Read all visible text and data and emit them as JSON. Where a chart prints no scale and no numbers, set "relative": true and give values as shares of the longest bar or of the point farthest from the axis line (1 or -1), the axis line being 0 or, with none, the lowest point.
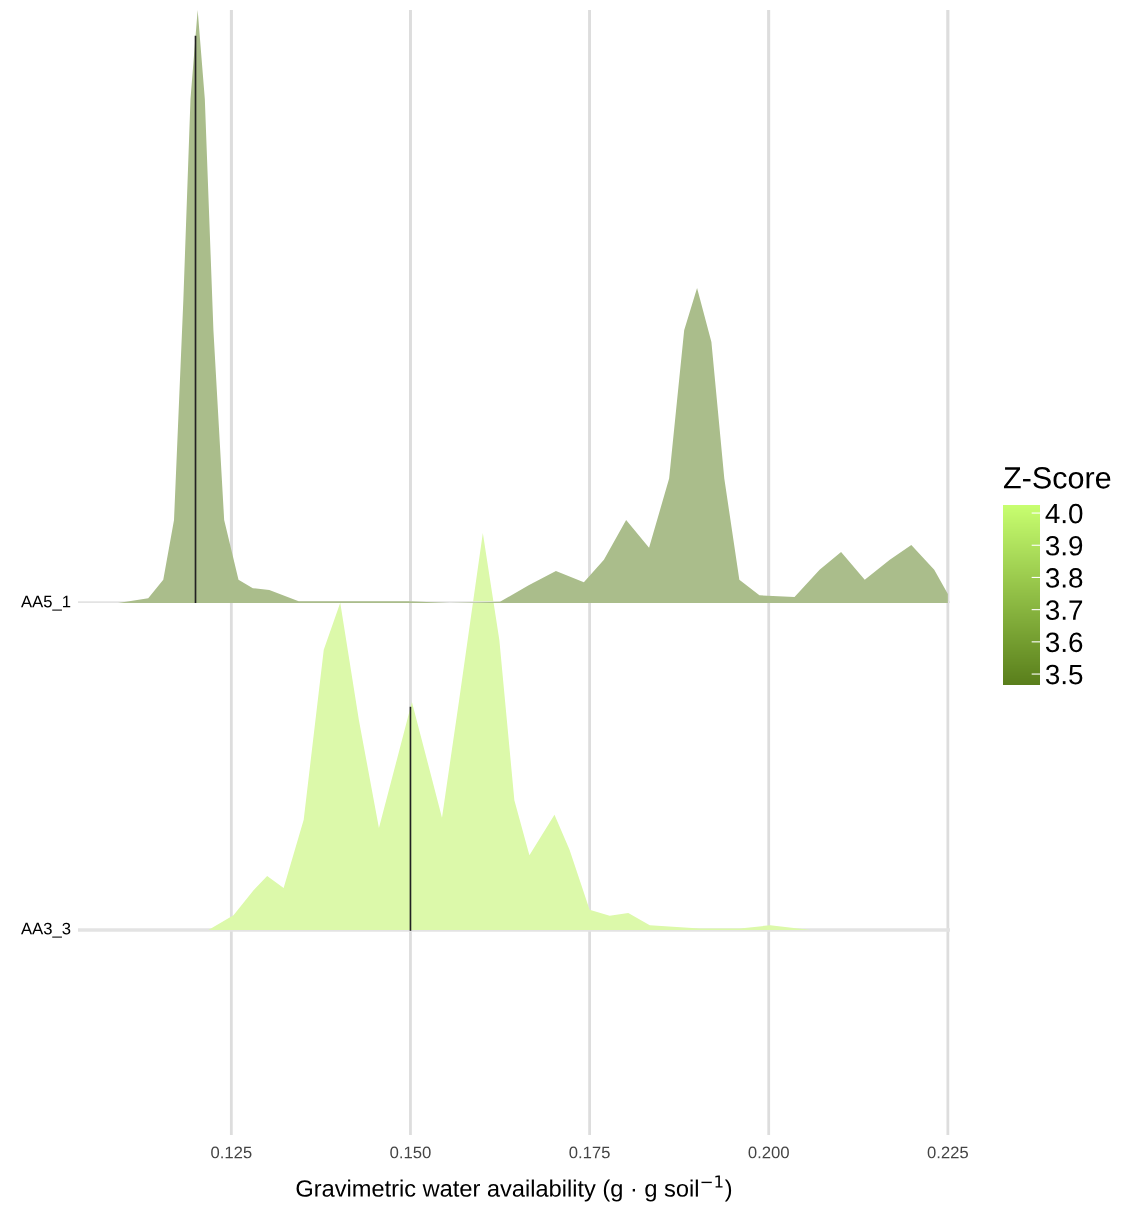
{
  "chart_data": [
    {
      "type": "area",
      "relative": true,
      "ylabel": "AA5_1",
      "tick_labels": false,
      "clabel": "Z-Score",
      "clim": [
        3.466,
        4.025
      ],
      "cticks": [
        {
          "value": 3.5,
          "label": "3.5"
        },
        {
          "value": 3.6,
          "label": "3.6"
        },
        {
          "value": 3.7,
          "label": "3.7"
        },
        {
          "value": 3.8,
          "label": "3.8"
        },
        {
          "value": 3.9,
          "label": "3.9"
        },
        {
          "value": 4.0,
          "label": "4.0"
        }
      ],
      "xlim": [
        0.1036,
        0.2253
      ],
      "xticks": [
        {
          "value": 0.125,
          "label": null
        },
        {
          "value": 0.15,
          "label": null
        },
        {
          "value": 0.175,
          "label": null
        },
        {
          "value": 0.2,
          "label": null
        },
        {
          "value": 0.225,
          "label": null
        }
      ],
      "grid": "x",
      "ref_lines": [
        {
          "axis": "x",
          "value": 0.12,
          "color": "#222222"
        }
      ],
      "series": [
        {
          "color": "#aabd8b",
          "x": [
            0.1092,
            0.1134,
            0.1155,
            0.117,
            0.1183,
            0.1193,
            0.1203,
            0.1213,
            0.1225,
            0.124,
            0.126,
            0.128,
            0.1303,
            0.1344,
            0.14,
            0.1498,
            0.1555,
            0.1625,
            0.1665,
            0.1703,
            0.1742,
            0.177,
            0.1801,
            0.1833,
            0.1861,
            0.1882,
            0.19,
            0.192,
            0.1938,
            0.1959,
            0.1987,
            0.2036,
            0.2071,
            0.2101,
            0.2134,
            0.2169,
            0.2199,
            0.2231,
            0.225
          ],
          "values": [
            0,
            0.008,
            0.039,
            0.14,
            0.51,
            0.85,
            1.0,
            0.85,
            0.46,
            0.14,
            0.039,
            0.025,
            0.022,
            0.003,
            0.003,
            0.003,
            0,
            0.002,
            0.03,
            0.054,
            0.035,
            0.073,
            0.14,
            0.093,
            0.21,
            0.46,
            0.531,
            0.44,
            0.21,
            0.039,
            0.013,
            0.01,
            0.056,
            0.086,
            0.039,
            0.073,
            0.098,
            0.056,
            0.015
          ]
        }
      ]
    },
    {
      "type": "area",
      "relative": true,
      "ylabel": "AA3_3",
      "tick_labels": "x",
      "xlabel": "Gravimetric water availability (g · g soil$^{−1}$)",
      "xlim": [
        0.1036,
        0.2253
      ],
      "xticks": [
        {
          "value": 0.125,
          "label": "0.125"
        },
        {
          "value": 0.15,
          "label": "0.150"
        },
        {
          "value": 0.175,
          "label": "0.175"
        },
        {
          "value": 0.2,
          "label": "0.200"
        },
        {
          "value": 0.225,
          "label": "0.225"
        }
      ],
      "grid": "x",
      "ref_lines": [
        {
          "axis": "x",
          "value": 0.15,
          "color": "#222222"
        }
      ],
      "series": [
        {
          "color": "#dcf9aa",
          "x": [
            0.1218,
            0.1253,
            0.1281,
            0.13,
            0.1323,
            0.1351,
            0.1379,
            0.1402,
            0.1428,
            0.1456,
            0.1481,
            0.1502,
            0.1523,
            0.1544,
            0.1568,
            0.1601,
            0.1624,
            0.1645,
            0.1666,
            0.1701,
            0.1722,
            0.175,
            0.1778,
            0.1804,
            0.1834,
            0.1904,
            0.196,
            0.2002,
            0.2059
          ],
          "values": [
            0,
            0.037,
            0.1,
            0.136,
            0.106,
            0.278,
            0.706,
            0.824,
            0.529,
            0.257,
            0.429,
            0.574,
            0.429,
            0.283,
            0.58,
            1.0,
            0.731,
            0.327,
            0.188,
            0.29,
            0.202,
            0.051,
            0.036,
            0.043,
            0.012,
            0.004,
            0.004,
            0.012,
            0
          ]
        }
      ]
    }
  ]
}
